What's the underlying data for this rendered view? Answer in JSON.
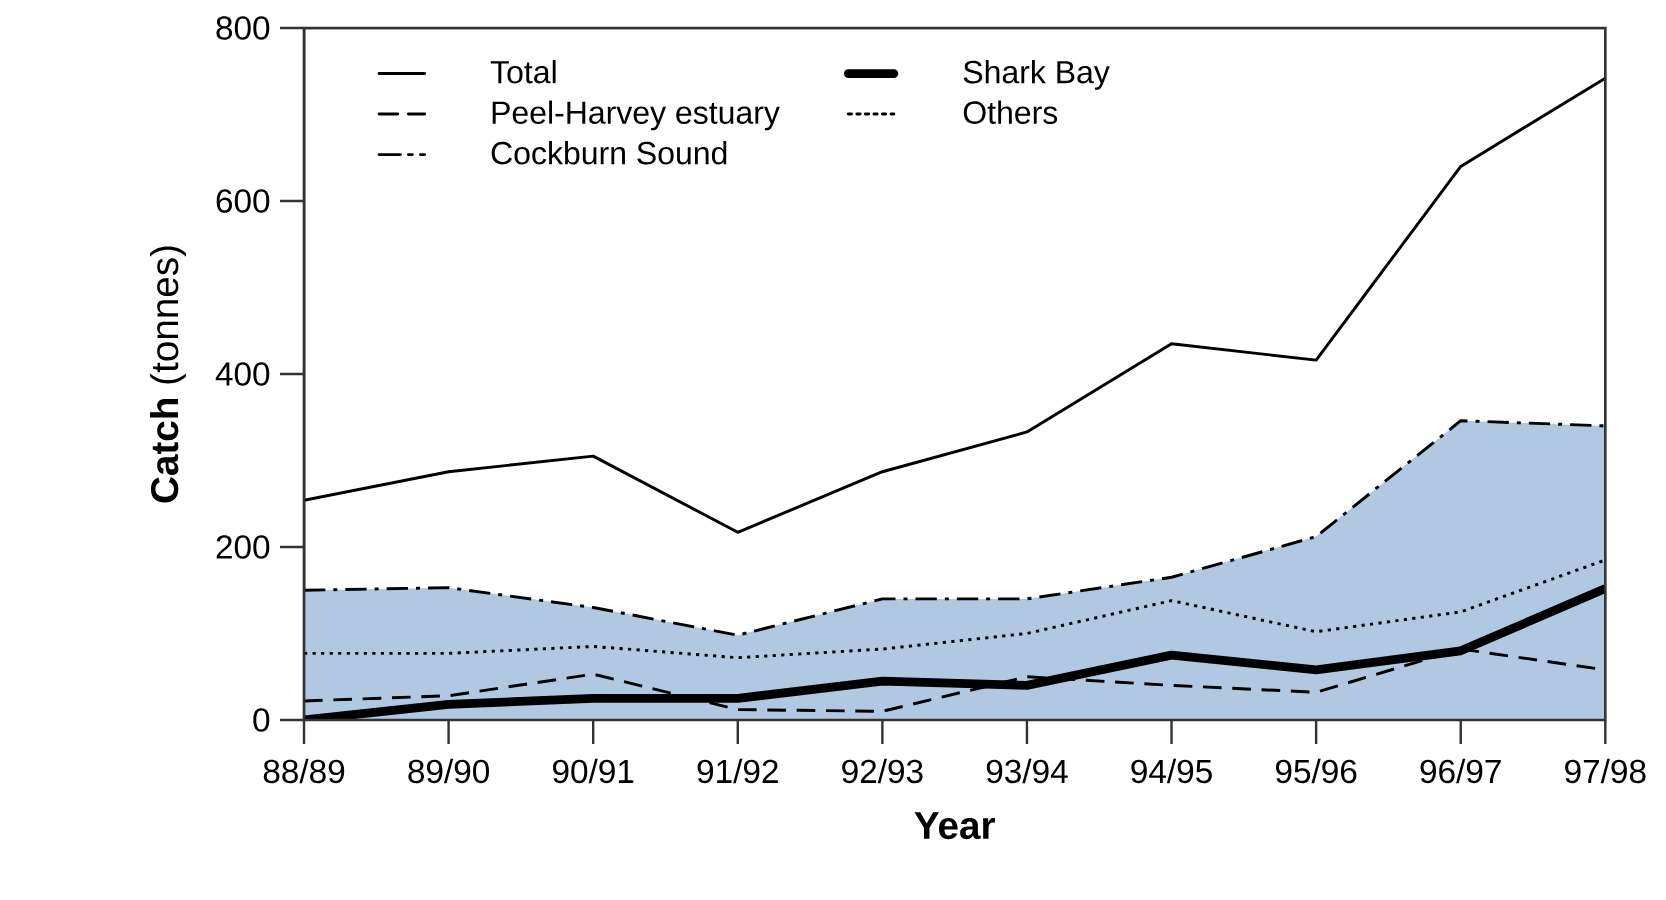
{
  "chart_data": {
    "type": "line",
    "xlabel": "Year",
    "ylabel": "**Catch** (tonnes)",
    "categories": [
      "88/89",
      "89/90",
      "90/91",
      "91/92",
      "92/93",
      "93/94",
      "94/95",
      "95/96",
      "96/97",
      "97/98"
    ],
    "series": [
      {
        "name": "Total",
        "color": "#000000",
        "line_style": "solid",
        "values": [
          254,
          287,
          305,
          217,
          287,
          333,
          435,
          416,
          640,
          742
        ]
      },
      {
        "name": "Peel-Harvey estuary",
        "color": "#000000",
        "line_style": "dashed",
        "values": [
          22,
          28,
          53,
          12,
          10,
          50,
          40,
          32,
          82,
          58
        ]
      },
      {
        "name": "Cockburn Sound",
        "type": "area",
        "color": "#b0c8e2",
        "line_style": "dashdot",
        "values": [
          150,
          153,
          130,
          98,
          140,
          140,
          165,
          212,
          346,
          340
        ]
      },
      {
        "name": "Shark Bay",
        "color": "#000000",
        "line_style": "solid",
        "values": [
          0,
          18,
          25,
          25,
          45,
          40,
          75,
          58,
          80,
          152
        ]
      },
      {
        "name": "Others",
        "color": "#000000",
        "line_style": "dotted",
        "values": [
          77,
          77,
          85,
          72,
          82,
          100,
          138,
          102,
          125,
          185
        ]
      }
    ],
    "ylim": [
      0,
      800
    ],
    "yticks": [
      0,
      200,
      400,
      600,
      800
    ],
    "grid": false,
    "legend": "top left"
  }
}
